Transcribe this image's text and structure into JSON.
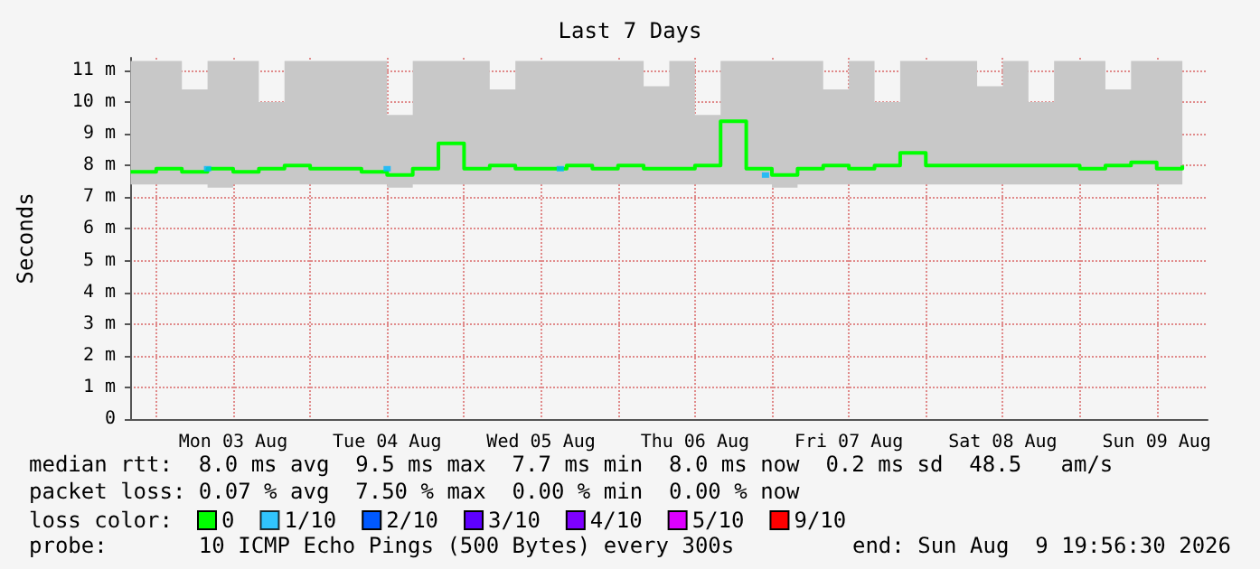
{
  "chart_data": {
    "type": "step",
    "title": "Last 7 Days",
    "ylabel": "Seconds",
    "x": [
      "2026-08-02T20:00",
      "2026-08-03T00:00",
      "2026-08-03T04:00",
      "2026-08-03T08:00",
      "2026-08-03T12:00",
      "2026-08-03T16:00",
      "2026-08-03T20:00",
      "2026-08-04T00:00",
      "2026-08-04T04:00",
      "2026-08-04T08:00",
      "2026-08-04T12:00",
      "2026-08-04T16:00",
      "2026-08-04T20:00",
      "2026-08-05T00:00",
      "2026-08-05T04:00",
      "2026-08-05T08:00",
      "2026-08-05T12:00",
      "2026-08-05T16:00",
      "2026-08-05T20:00",
      "2026-08-06T00:00",
      "2026-08-06T04:00",
      "2026-08-06T08:00",
      "2026-08-06T12:00",
      "2026-08-06T16:00",
      "2026-08-06T20:00",
      "2026-08-07T00:00",
      "2026-08-07T04:00",
      "2026-08-07T08:00",
      "2026-08-07T12:00",
      "2026-08-07T16:00",
      "2026-08-07T20:00",
      "2026-08-08T00:00",
      "2026-08-08T04:00",
      "2026-08-08T08:00",
      "2026-08-08T12:00",
      "2026-08-08T16:00",
      "2026-08-08T20:00",
      "2026-08-09T00:00",
      "2026-08-09T04:00",
      "2026-08-09T08:00",
      "2026-08-09T12:00",
      "2026-08-09T16:00"
    ],
    "series": [
      {
        "name": "0",
        "color": "#00ff00",
        "values": [
          7.8,
          7.9,
          7.8,
          7.9,
          7.8,
          7.9,
          8.0,
          7.9,
          7.9,
          7.8,
          7.7,
          7.9,
          8.7,
          7.9,
          8.0,
          7.9,
          7.9,
          8.0,
          7.9,
          8.0,
          7.9,
          7.9,
          8.0,
          9.4,
          7.9,
          7.7,
          7.9,
          8.0,
          7.9,
          8.0,
          8.4,
          8.0,
          8.0,
          8.0,
          8.0,
          8.0,
          8.0,
          7.9,
          8.0,
          8.1,
          7.9,
          8.0
        ],
        "lower": [
          7.4,
          7.4,
          7.4,
          7.3,
          7.4,
          7.4,
          7.4,
          7.4,
          7.4,
          7.4,
          7.3,
          7.4,
          7.4,
          7.4,
          7.4,
          7.4,
          7.4,
          7.4,
          7.4,
          7.4,
          7.4,
          7.4,
          7.4,
          7.4,
          7.4,
          7.3,
          7.4,
          7.4,
          7.4,
          7.4,
          7.4,
          7.4,
          7.4,
          7.4,
          7.4,
          7.4,
          7.4,
          7.4,
          7.4,
          7.4,
          7.4,
          7.4
        ],
        "upper": [
          11.3,
          11.3,
          10.4,
          11.3,
          11.3,
          10.0,
          11.3,
          11.3,
          11.3,
          11.3,
          9.6,
          11.3,
          11.3,
          11.3,
          10.4,
          11.3,
          11.3,
          11.3,
          11.3,
          11.3,
          10.5,
          11.3,
          9.6,
          11.3,
          11.3,
          11.3,
          11.3,
          10.4,
          11.3,
          10.0,
          11.3,
          11.3,
          11.3,
          10.5,
          11.3,
          10.0,
          11.3,
          11.3,
          10.4,
          11.3,
          11.3,
          11.3
        ]
      },
      {
        "name": "1/10",
        "type": "scatter",
        "color": "#00b8ff",
        "marker": "square",
        "x": [
          "2026-08-03T08:00",
          "2026-08-04T12:00",
          "2026-08-05T15:00",
          "2026-08-06T23:00"
        ],
        "values": [
          7.9,
          7.9,
          7.9,
          7.7
        ]
      },
      {
        "name": "2/10",
        "color": "#0059ff",
        "values": [
          null,
          null,
          null,
          null,
          null,
          null,
          null,
          null,
          null,
          null,
          null,
          null,
          null,
          null,
          null,
          null,
          null,
          null,
          null,
          null,
          null,
          null,
          null,
          null,
          null,
          null,
          null,
          null,
          null,
          null,
          null,
          null,
          null,
          null,
          null,
          null,
          null,
          null,
          null,
          null,
          null,
          null
        ]
      },
      {
        "name": "3/10",
        "color": "#5e00ff",
        "values": [
          null,
          null,
          null,
          null,
          null,
          null,
          null,
          null,
          null,
          null,
          null,
          null,
          null,
          null,
          null,
          null,
          null,
          null,
          null,
          null,
          null,
          null,
          null,
          null,
          null,
          null,
          null,
          null,
          null,
          null,
          null,
          null,
          null,
          null,
          null,
          null,
          null,
          null,
          null,
          null,
          null,
          null
        ]
      },
      {
        "name": "4/10",
        "color": "#7e00ff",
        "values": [
          null,
          null,
          null,
          null,
          null,
          null,
          null,
          null,
          null,
          null,
          null,
          null,
          null,
          null,
          null,
          null,
          null,
          null,
          null,
          null,
          null,
          null,
          null,
          null,
          null,
          null,
          null,
          null,
          null,
          null,
          null,
          null,
          null,
          null,
          null,
          null,
          null,
          null,
          null,
          null,
          null,
          null
        ]
      },
      {
        "name": "5/10",
        "color": "#dd00ff",
        "values": [
          null,
          null,
          null,
          null,
          null,
          null,
          null,
          null,
          null,
          null,
          null,
          null,
          null,
          null,
          null,
          null,
          null,
          null,
          null,
          null,
          null,
          null,
          null,
          null,
          null,
          null,
          null,
          null,
          null,
          null,
          null,
          null,
          null,
          null,
          null,
          null,
          null,
          null,
          null,
          null,
          null,
          null
        ]
      },
      {
        "name": "9/10",
        "color": "#ff0000",
        "values": [
          null,
          null,
          null,
          null,
          null,
          null,
          null,
          null,
          null,
          null,
          null,
          null,
          null,
          null,
          null,
          null,
          null,
          null,
          null,
          null,
          null,
          null,
          null,
          null,
          null,
          null,
          null,
          null,
          null,
          null,
          null,
          null,
          null,
          null,
          null,
          null,
          null,
          null,
          null,
          null,
          null,
          null
        ]
      }
    ],
    "legend_title": "loss color:",
    "legend": "bottom",
    "grid": true,
    "xlim": [
      "2026-08-02T19:56",
      "2026-08-09T19:56"
    ],
    "xticks": [
      {
        "value": "2026-08-03T00:00",
        "label": null
      },
      {
        "value": "2026-08-03T12:00",
        "label": "Mon 03 Aug"
      },
      {
        "value": "2026-08-04T00:00",
        "label": null
      },
      {
        "value": "2026-08-04T12:00",
        "label": "Tue 04 Aug"
      },
      {
        "value": "2026-08-05T00:00",
        "label": null
      },
      {
        "value": "2026-08-05T12:00",
        "label": "Wed 05 Aug"
      },
      {
        "value": "2026-08-06T00:00",
        "label": null
      },
      {
        "value": "2026-08-06T12:00",
        "label": "Thu 06 Aug"
      },
      {
        "value": "2026-08-07T00:00",
        "label": null
      },
      {
        "value": "2026-08-07T12:00",
        "label": "Fri 07 Aug"
      },
      {
        "value": "2026-08-08T00:00",
        "label": null
      },
      {
        "value": "2026-08-08T12:00",
        "label": "Sat 08 Aug"
      },
      {
        "value": "2026-08-09T00:00",
        "label": null
      },
      {
        "value": "2026-08-09T12:00",
        "label": "Sun 09 Aug"
      }
    ],
    "ylim": [
      0,
      11.4
    ],
    "yticks": [
      0,
      {
        "value": 1,
        "label": "1 m"
      },
      {
        "value": 2,
        "label": "2 m"
      },
      {
        "value": 3,
        "label": "3 m"
      },
      {
        "value": 4,
        "label": "4 m"
      },
      {
        "value": 5,
        "label": "5 m"
      },
      {
        "value": 6,
        "label": "6 m"
      },
      {
        "value": 7,
        "label": "7 m"
      },
      {
        "value": 8,
        "label": "8 m"
      },
      {
        "value": 9,
        "label": "9 m"
      },
      {
        "value": 10,
        "label": "10 m"
      },
      {
        "value": 11,
        "label": "11 m"
      }
    ],
    "annotations": [
      "median rtt:  8.0 ms avg  9.5 ms max  7.7 ms min  8.0 ms now  0.2 ms sd  48.5   am/s",
      "packet loss: 0.07 % avg  7.50 % max  0.00 % min  0.00 % now",
      "probe:       10 ICMP Echo Pings (500 Bytes) every 300s",
      "end: Sun Aug  9 19:56:30 2026"
    ]
  }
}
